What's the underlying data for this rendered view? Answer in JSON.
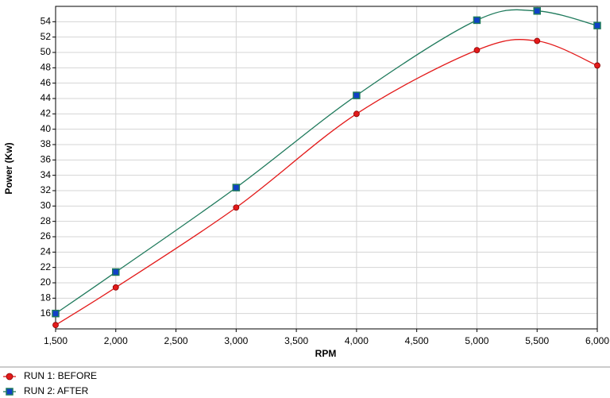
{
  "chart_data": {
    "type": "line",
    "x_label": "RPM",
    "y_label": "Power (Kw)",
    "x": [
      1500,
      2000,
      3000,
      4000,
      5000,
      5500,
      6000
    ],
    "series": [
      {
        "name": "RUN 1: BEFORE",
        "color": "#e31a1a",
        "marker": "circle",
        "marker_color": "#e31a1a",
        "values": [
          14.5,
          19.4,
          29.8,
          42.0,
          50.3,
          51.5,
          48.3
        ]
      },
      {
        "name": "RUN 2: AFTER",
        "color": "#1f7a5c",
        "marker": "square",
        "marker_color": "#1040c8",
        "values": [
          16.0,
          21.4,
          32.4,
          44.4,
          54.2,
          55.4,
          53.5
        ]
      }
    ],
    "xlim": [
      1500,
      6000
    ],
    "xticks": [
      {
        "value": 1500,
        "label": "1,500"
      },
      {
        "value": 2000,
        "label": "2,000"
      },
      {
        "value": 2500,
        "label": "2,500"
      },
      {
        "value": 3000,
        "label": "3,000"
      },
      {
        "value": 3500,
        "label": "3,500"
      },
      {
        "value": 4000,
        "label": "4,000"
      },
      {
        "value": 4500,
        "label": "4,500"
      },
      {
        "value": 5000,
        "label": "5,000"
      },
      {
        "value": 5500,
        "label": "5,500"
      },
      {
        "value": 6000,
        "label": "6,000"
      }
    ],
    "ylim": [
      14,
      56
    ],
    "yticks": [
      16,
      18,
      20,
      22,
      24,
      26,
      28,
      30,
      32,
      34,
      36,
      38,
      40,
      42,
      44,
      46,
      48,
      50,
      52,
      54
    ],
    "grid": true
  }
}
